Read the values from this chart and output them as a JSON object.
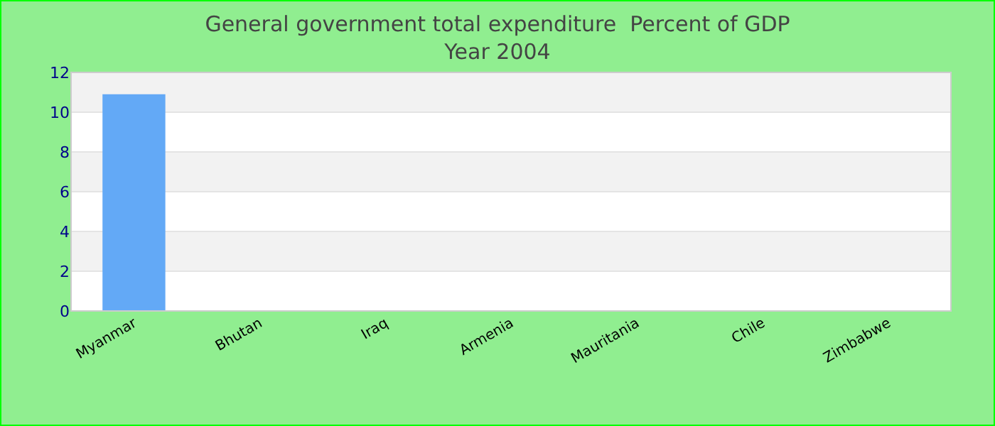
{
  "chart_data": {
    "type": "bar",
    "title": "General government total expenditure  Percent of GDP",
    "subtitle": "Year 2004",
    "categories": [
      "Myanmar",
      "Bhutan",
      "Iraq",
      "Armenia",
      "Mauritania",
      "Chile",
      "Zimbabwe"
    ],
    "values": [
      10.9,
      null,
      null,
      null,
      null,
      null,
      null
    ],
    "color": "#63a9f6",
    "ylim": [
      0,
      12
    ],
    "yticks": [
      0,
      2,
      4,
      6,
      8,
      10,
      12
    ],
    "grid": "y"
  }
}
